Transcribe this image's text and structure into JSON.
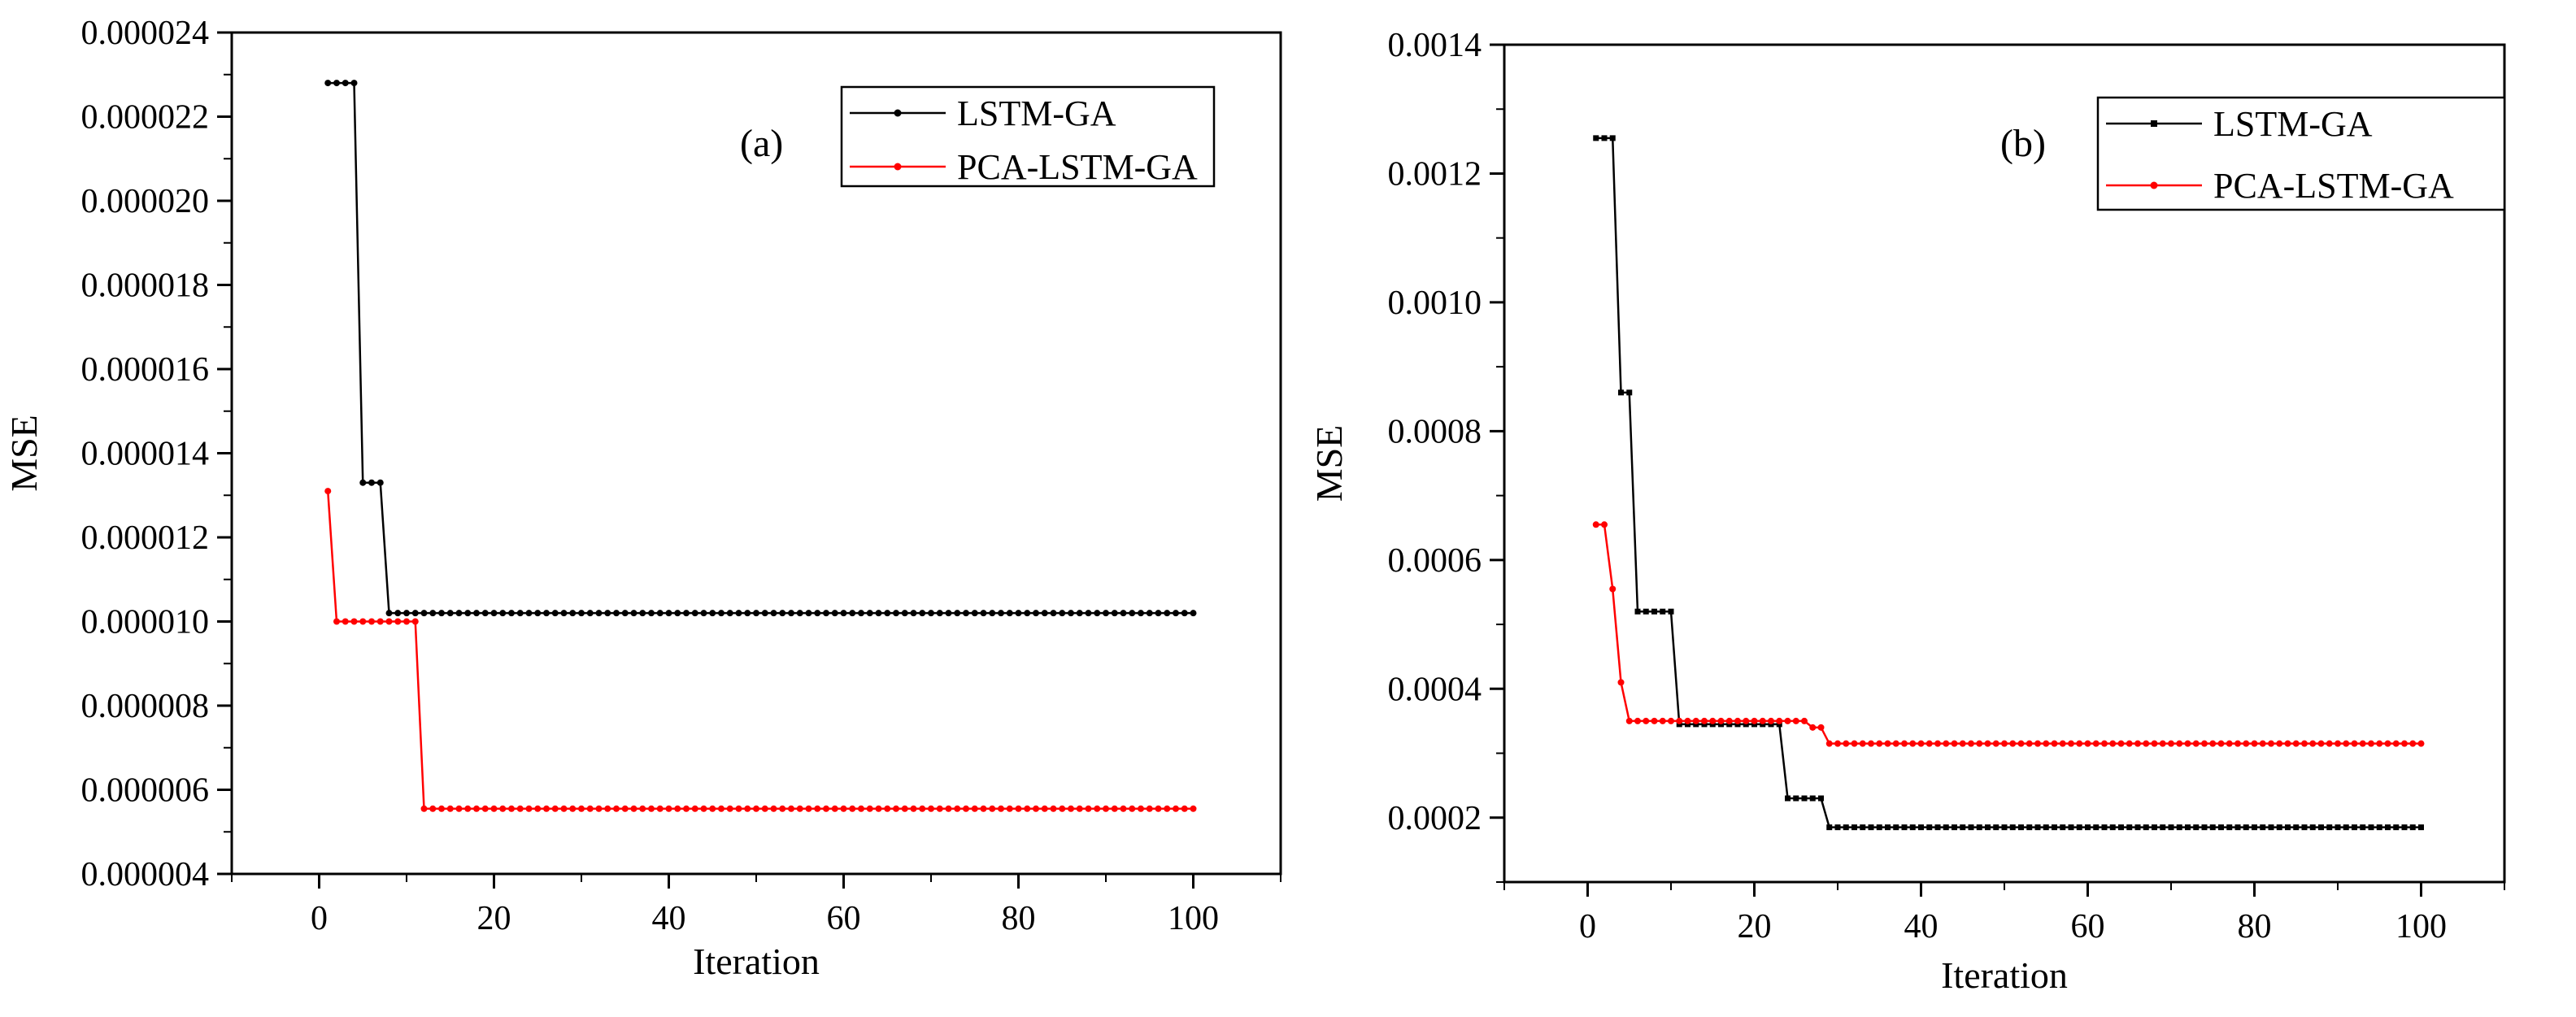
{
  "chart_data": [
    {
      "type": "line",
      "panel_label": "(a)",
      "xlabel": "Iteration",
      "ylabel": "MSE",
      "xlim": [
        -10,
        110
      ],
      "ylim": [
        4e-06,
        2.4e-05
      ],
      "xticks": [
        0,
        20,
        40,
        60,
        80,
        100
      ],
      "xtick_labels": [
        "0",
        "20",
        "40",
        "60",
        "80",
        "100"
      ],
      "yticks": [
        4e-06,
        6e-06,
        8e-06,
        1e-05,
        1.2e-05,
        1.4e-05,
        1.6e-05,
        1.8e-05,
        2e-05,
        2.2e-05,
        2.4e-05
      ],
      "ytick_labels": [
        "0.000004",
        "0.000006",
        "0.000008",
        "0.000010",
        "0.000012",
        "0.000014",
        "0.000016",
        "0.000018",
        "0.000020",
        "0.000022",
        "0.000024"
      ],
      "legend_position": "top-right",
      "series": [
        {
          "name": "LSTM-GA",
          "color": "#000000",
          "marker": "circle",
          "steps": [
            [
              1,
              2.28e-05
            ],
            [
              5,
              1.33e-05
            ],
            [
              8,
              1.02e-05
            ]
          ],
          "x_end": 100
        },
        {
          "name": "PCA-LSTM-GA",
          "color": "#ff0000",
          "marker": "circle",
          "steps": [
            [
              1,
              1.31e-05
            ],
            [
              2,
              1e-05
            ],
            [
              12,
              5.55e-06
            ]
          ],
          "x_end": 100
        }
      ]
    },
    {
      "type": "line",
      "panel_label": "(b)",
      "xlabel": "Iteration",
      "ylabel": "MSE",
      "xlim": [
        -10,
        110
      ],
      "ylim": [
        0.0001,
        0.0014
      ],
      "xticks": [
        0,
        20,
        40,
        60,
        80,
        100
      ],
      "xtick_labels": [
        "0",
        "20",
        "40",
        "60",
        "80",
        "100"
      ],
      "yticks": [
        0.0002,
        0.0004,
        0.0006,
        0.0008,
        0.001,
        0.0012,
        0.0014
      ],
      "ytick_labels": [
        "0.0002",
        "0.0004",
        "0.0006",
        "0.0008",
        "0.0010",
        "0.0012",
        "0.0014"
      ],
      "legend_position": "top-right",
      "series": [
        {
          "name": "LSTM-GA",
          "color": "#000000",
          "marker": "square",
          "steps": [
            [
              1,
              0.001255
            ],
            [
              4,
              0.00086
            ],
            [
              6,
              0.00052
            ],
            [
              11,
              0.000345
            ],
            [
              24,
              0.00023
            ],
            [
              29,
              0.000185
            ]
          ],
          "x_end": 100
        },
        {
          "name": "PCA-LSTM-GA",
          "color": "#ff0000",
          "marker": "circle",
          "steps": [
            [
              1,
              0.000655
            ],
            [
              3,
              0.000555
            ],
            [
              4,
              0.00041
            ],
            [
              5,
              0.00035
            ],
            [
              27,
              0.00034
            ],
            [
              29,
              0.000315
            ]
          ],
          "x_end": 100
        }
      ]
    }
  ]
}
